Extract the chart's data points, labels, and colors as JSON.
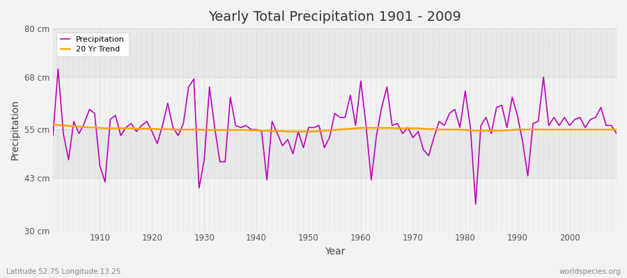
{
  "title": "Yearly Total Precipitation 1901 - 2009",
  "xlabel": "Year",
  "ylabel": "Precipitation",
  "lat_lon_label": "Latitude 52.75 Longitude 13.25",
  "source_label": "worldspecies.org",
  "ylim": [
    30,
    80
  ],
  "yticks": [
    30,
    43,
    55,
    68,
    80
  ],
  "ytick_labels": [
    "30 cm",
    "43 cm",
    "55 cm",
    "68 cm",
    "80 cm"
  ],
  "xlim": [
    1901,
    2009
  ],
  "xticks": [
    1910,
    1920,
    1930,
    1940,
    1950,
    1960,
    1970,
    1980,
    1990,
    2000
  ],
  "precipitation_color": "#bb00bb",
  "trend_color": "#FFA500",
  "fig_facecolor": "#f0f0f0",
  "plot_bg_color": "#f0f0f0",
  "title_fontsize": 14,
  "years": [
    1901,
    1902,
    1903,
    1904,
    1905,
    1906,
    1907,
    1908,
    1909,
    1910,
    1911,
    1912,
    1913,
    1914,
    1915,
    1916,
    1917,
    1918,
    1919,
    1920,
    1921,
    1922,
    1923,
    1924,
    1925,
    1926,
    1927,
    1928,
    1929,
    1930,
    1931,
    1932,
    1933,
    1934,
    1935,
    1936,
    1937,
    1938,
    1939,
    1940,
    1941,
    1942,
    1943,
    1944,
    1945,
    1946,
    1947,
    1948,
    1949,
    1950,
    1951,
    1952,
    1953,
    1954,
    1955,
    1956,
    1957,
    1958,
    1959,
    1960,
    1961,
    1962,
    1963,
    1964,
    1965,
    1966,
    1967,
    1968,
    1969,
    1970,
    1971,
    1972,
    1973,
    1974,
    1975,
    1976,
    1977,
    1978,
    1979,
    1980,
    1981,
    1982,
    1983,
    1984,
    1985,
    1986,
    1987,
    1988,
    1989,
    1990,
    1991,
    1992,
    1993,
    1994,
    1995,
    1996,
    1997,
    1998,
    1999,
    2000,
    2001,
    2002,
    2003,
    2004,
    2005,
    2006,
    2007,
    2008,
    2009
  ],
  "precipitation": [
    53.5,
    70.0,
    54.0,
    47.5,
    57.0,
    54.0,
    56.5,
    60.0,
    59.0,
    46.0,
    42.0,
    57.5,
    58.5,
    53.5,
    55.5,
    56.5,
    54.5,
    56.0,
    57.0,
    54.5,
    51.5,
    56.0,
    61.5,
    55.5,
    53.5,
    56.5,
    65.5,
    67.5,
    40.5,
    47.5,
    65.5,
    55.5,
    47.0,
    47.0,
    63.0,
    56.0,
    55.5,
    56.0,
    55.0,
    55.0,
    54.5,
    42.5,
    57.0,
    54.0,
    51.0,
    52.5,
    49.0,
    54.5,
    50.5,
    55.5,
    55.5,
    56.0,
    50.5,
    53.0,
    59.0,
    58.0,
    58.0,
    63.5,
    56.0,
    67.0,
    56.0,
    42.5,
    53.5,
    60.5,
    65.5,
    56.0,
    56.5,
    54.0,
    55.5,
    53.0,
    54.5,
    50.0,
    48.5,
    53.0,
    57.0,
    56.0,
    59.0,
    60.0,
    55.5,
    64.5,
    55.5,
    36.5,
    56.0,
    58.0,
    54.0,
    60.5,
    61.0,
    55.5,
    63.0,
    58.5,
    52.0,
    43.5,
    56.5,
    57.0,
    68.0,
    56.0,
    58.0,
    56.0,
    58.0,
    56.0,
    57.5,
    58.0,
    55.5,
    57.5,
    58.0,
    60.5,
    56.0,
    56.0,
    54.0
  ],
  "trend": [
    56.2,
    56.1,
    56.0,
    55.9,
    55.8,
    55.7,
    55.6,
    55.5,
    55.5,
    55.4,
    55.3,
    55.3,
    55.3,
    55.3,
    55.3,
    55.3,
    55.2,
    55.2,
    55.2,
    55.2,
    55.1,
    55.1,
    55.1,
    55.0,
    55.0,
    55.0,
    55.0,
    55.0,
    55.0,
    54.9,
    54.9,
    54.9,
    54.9,
    54.9,
    54.9,
    54.9,
    54.9,
    54.9,
    54.8,
    54.8,
    54.7,
    54.7,
    54.6,
    54.6,
    54.6,
    54.5,
    54.5,
    54.5,
    54.5,
    54.5,
    54.5,
    54.6,
    54.7,
    54.8,
    54.9,
    55.0,
    55.1,
    55.2,
    55.3,
    55.4,
    55.4,
    55.4,
    55.4,
    55.4,
    55.4,
    55.4,
    55.3,
    55.3,
    55.3,
    55.3,
    55.3,
    55.2,
    55.1,
    55.1,
    55.0,
    55.0,
    55.0,
    55.0,
    55.0,
    54.9,
    54.8,
    54.7,
    54.7,
    54.7,
    54.7,
    54.7,
    54.7,
    54.8,
    54.9,
    55.0,
    55.0,
    55.0,
    55.0,
    55.0,
    55.0,
    55.0,
    55.0,
    55.0,
    55.0,
    55.0,
    55.0,
    55.0,
    55.0,
    55.0,
    55.0,
    55.0,
    55.0,
    55.0,
    55.0
  ]
}
